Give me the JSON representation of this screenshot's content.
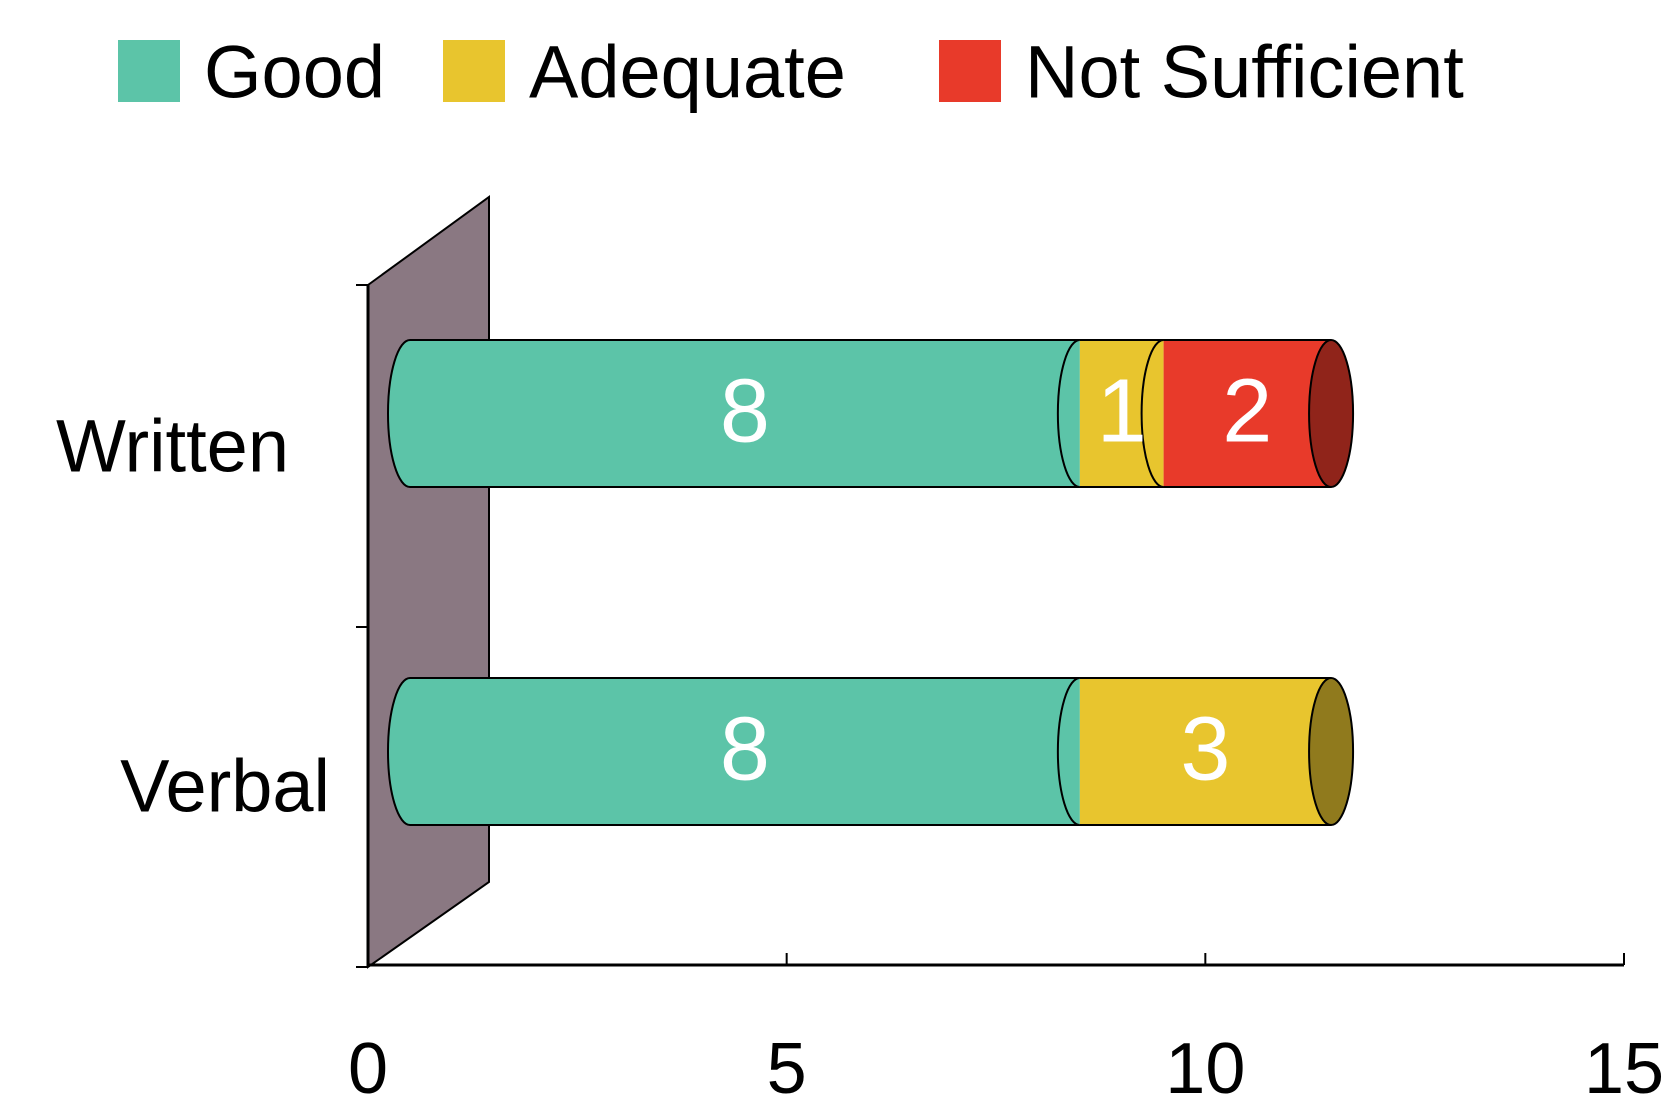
{
  "chart_data": {
    "type": "bar",
    "orientation": "horizontal",
    "stacked": true,
    "categories": [
      "Written",
      "Verbal"
    ],
    "series": [
      {
        "name": "Good",
        "color": "#5cc4a8",
        "values": [
          8,
          8
        ]
      },
      {
        "name": "Adequate",
        "color": "#e8c52e",
        "values": [
          1,
          3
        ]
      },
      {
        "name": "Not Sufficient",
        "color": "#e83a2a",
        "values": [
          2,
          null
        ]
      }
    ],
    "xlim": [
      0,
      15
    ],
    "xticks": [
      0,
      5,
      10,
      15
    ],
    "legend": "top"
  }
}
